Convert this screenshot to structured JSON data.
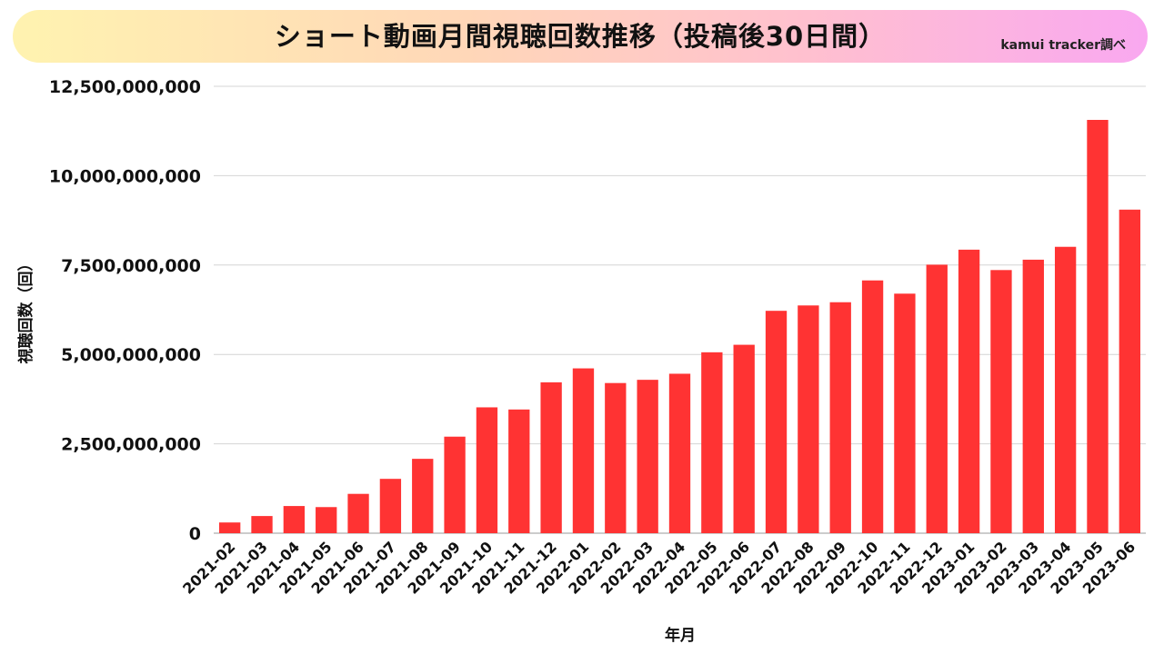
{
  "title": "ショート動画月間視聴回数推移（投稿後30日間）",
  "source_note": "kamui tracker調べ",
  "chart_data": {
    "type": "bar",
    "title": "ショート動画月間視聴回数推移（投稿後30日間）",
    "xlabel": "年月",
    "ylabel": "視聴回数（回）",
    "ylim": [
      0,
      12500000000
    ],
    "yticks": [
      0,
      2500000000,
      5000000000,
      7500000000,
      10000000000,
      12500000000
    ],
    "ytick_labels": [
      "0",
      "2,500,000,000",
      "5,000,000,000",
      "7,500,000,000",
      "10,000,000,000",
      "12,500,000,000"
    ],
    "grid": true,
    "bar_color": "#ff3333",
    "categories": [
      "2021-02",
      "2021-03",
      "2021-04",
      "2021-05",
      "2021-06",
      "2021-07",
      "2021-08",
      "2021-09",
      "2021-10",
      "2021-11",
      "2021-12",
      "2022-01",
      "2022-02",
      "2022-03",
      "2022-04",
      "2022-05",
      "2022-06",
      "2022-07",
      "2022-08",
      "2022-09",
      "2022-10",
      "2022-11",
      "2022-12",
      "2023-01",
      "2023-02",
      "2023-03",
      "2023-04",
      "2023-05",
      "2023-06"
    ],
    "values": [
      300000000,
      480000000,
      760000000,
      730000000,
      1100000000,
      1520000000,
      2080000000,
      2700000000,
      3520000000,
      3460000000,
      4220000000,
      4610000000,
      4200000000,
      4290000000,
      4460000000,
      5060000000,
      5270000000,
      6220000000,
      6370000000,
      6460000000,
      7070000000,
      6700000000,
      7510000000,
      7930000000,
      7360000000,
      7650000000,
      8010000000,
      11560000000,
      9050000000
    ]
  }
}
